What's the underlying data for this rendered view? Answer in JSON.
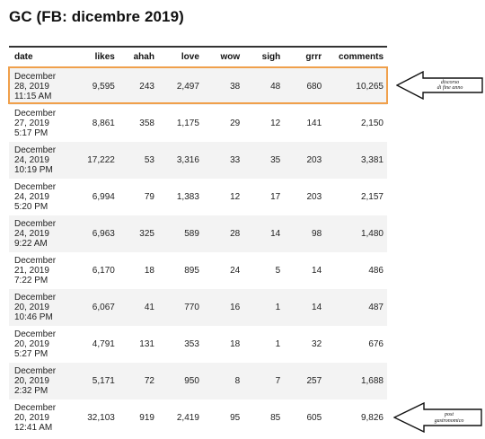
{
  "page": {
    "title": "GC (FB: dicembre 2019)"
  },
  "table": {
    "columns": [
      "date",
      "likes",
      "ahah",
      "love",
      "wow",
      "sigh",
      "grrr",
      "comments"
    ],
    "rows": [
      {
        "date": [
          "December",
          "28, 2019",
          "11:15 AM"
        ],
        "likes": "9,595",
        "ahah": "243",
        "love": "2,497",
        "wow": "38",
        "sigh": "48",
        "grrr": "680",
        "comments": "10,265"
      },
      {
        "date": [
          "December",
          "27, 2019",
          "5:17 PM"
        ],
        "likes": "8,861",
        "ahah": "358",
        "love": "1,175",
        "wow": "29",
        "sigh": "12",
        "grrr": "141",
        "comments": "2,150"
      },
      {
        "date": [
          "December",
          "24, 2019",
          "10:19 PM"
        ],
        "likes": "17,222",
        "ahah": "53",
        "love": "3,316",
        "wow": "33",
        "sigh": "35",
        "grrr": "203",
        "comments": "3,381"
      },
      {
        "date": [
          "December",
          "24, 2019",
          "5:20 PM"
        ],
        "likes": "6,994",
        "ahah": "79",
        "love": "1,383",
        "wow": "12",
        "sigh": "17",
        "grrr": "203",
        "comments": "2,157"
      },
      {
        "date": [
          "December",
          "24, 2019",
          "9:22 AM"
        ],
        "likes": "6,963",
        "ahah": "325",
        "love": "589",
        "wow": "28",
        "sigh": "14",
        "grrr": "98",
        "comments": "1,480"
      },
      {
        "date": [
          "December",
          "21, 2019",
          "7:22 PM"
        ],
        "likes": "6,170",
        "ahah": "18",
        "love": "895",
        "wow": "24",
        "sigh": "5",
        "grrr": "14",
        "comments": "486"
      },
      {
        "date": [
          "December",
          "20, 2019",
          "10:46 PM"
        ],
        "likes": "6,067",
        "ahah": "41",
        "love": "770",
        "wow": "16",
        "sigh": "1",
        "grrr": "14",
        "comments": "487"
      },
      {
        "date": [
          "December",
          "20, 2019",
          "5:27 PM"
        ],
        "likes": "4,791",
        "ahah": "131",
        "love": "353",
        "wow": "18",
        "sigh": "1",
        "grrr": "32",
        "comments": "676"
      },
      {
        "date": [
          "December",
          "20, 2019",
          "2:32 PM"
        ],
        "likes": "5,171",
        "ahah": "72",
        "love": "950",
        "wow": "8",
        "sigh": "7",
        "grrr": "257",
        "comments": "1,688"
      },
      {
        "date": [
          "December",
          "20, 2019",
          "12:41 AM"
        ],
        "likes": "32,103",
        "ahah": "919",
        "love": "2,419",
        "wow": "95",
        "sigh": "85",
        "grrr": "605",
        "comments": "9,826"
      }
    ]
  },
  "annotations": {
    "top_arrow": {
      "lines": [
        "discorso",
        "di fine anno"
      ]
    },
    "bottom_arrow": {
      "lines": [
        "post",
        "gastronomico"
      ]
    },
    "highlight_color": "#f0a04b"
  }
}
